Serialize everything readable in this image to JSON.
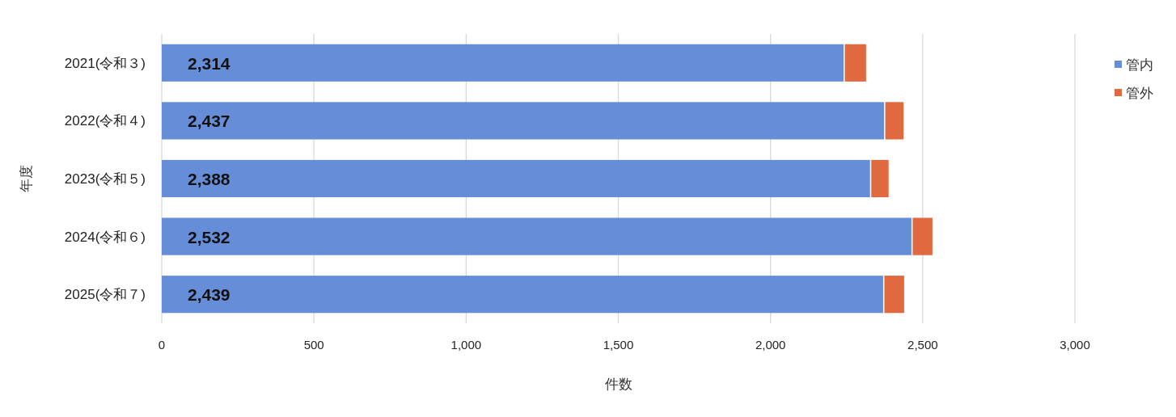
{
  "chart_data": {
    "type": "bar",
    "orientation": "horizontal",
    "stacked": true,
    "categories": [
      "2021(令和３)",
      "2022(令和４)",
      "2023(令和５)",
      "2024(令和６)",
      "2025(令和７)"
    ],
    "series": [
      {
        "name": "管内",
        "color": "#668ed8",
        "values": [
          2240,
          2373,
          2327,
          2463,
          2370
        ]
      },
      {
        "name": "管外",
        "color": "#e0693f",
        "values": [
          74,
          64,
          61,
          69,
          69
        ]
      }
    ],
    "totals": [
      "2,314",
      "2,437",
      "2,388",
      "2,532",
      "2,439"
    ],
    "xlabel": "件数",
    "ylabel": "年度",
    "xlim": [
      0,
      3000
    ],
    "xticks": [
      0,
      500,
      {
        "value": 1000,
        "label": "1,000"
      },
      {
        "value": 1500,
        "label": "1,500"
      },
      {
        "value": 2000,
        "label": "2,000"
      },
      {
        "value": 2500,
        "label": "2,500"
      },
      {
        "value": 3000,
        "label": "3,000"
      }
    ],
    "grid": "x",
    "legend": "top right"
  }
}
